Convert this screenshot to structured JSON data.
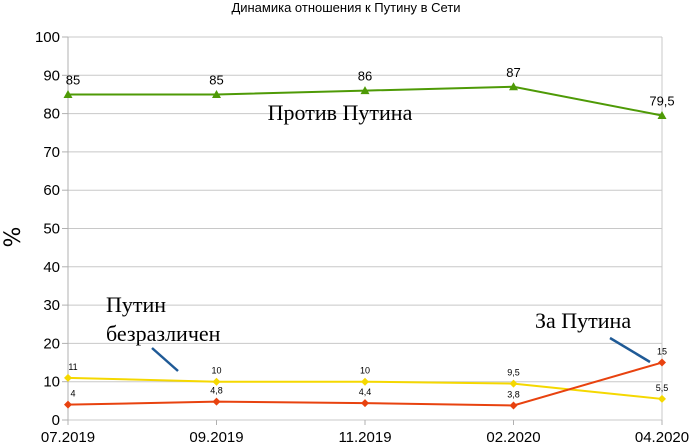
{
  "chart_data": {
    "type": "line",
    "title": "Динамика отношения к Путину в Сети",
    "xlabel": "",
    "ylabel": "%",
    "categories": [
      "07.2019",
      "09.2019",
      "11.2019",
      "02.2020",
      "04.2020"
    ],
    "ylim": [
      0,
      100
    ],
    "yticks": [
      "0",
      "10",
      "20",
      "30",
      "40",
      "50",
      "60",
      "70",
      "80",
      "90",
      "100"
    ],
    "grid": "horizontal",
    "series": [
      {
        "name": "Против Путина",
        "color": "#4E9A06",
        "marker": "triangle",
        "values": [
          85,
          85,
          86,
          87,
          79.5
        ],
        "labels": [
          "85",
          "85",
          "86",
          "87",
          "79,5"
        ]
      },
      {
        "name": "Путин безразличен",
        "color": "#F5D800",
        "marker": "diamond",
        "values": [
          11,
          10,
          10,
          9.5,
          5.5
        ],
        "labels": [
          "11",
          "10",
          "10",
          "9,5",
          "5,5"
        ]
      },
      {
        "name": "За Путина",
        "color": "#E8420F",
        "marker": "diamond",
        "values": [
          4,
          4.8,
          4.4,
          3.8,
          15
        ],
        "labels": [
          "4",
          "4,8",
          "4,4",
          "3,8",
          "15"
        ]
      }
    ],
    "annotations": {
      "against": "Против Путина",
      "indifferent_line1": "Путин",
      "indifferent_line2": "безразличен",
      "for": "За Путина"
    },
    "arrow_color": "#1F5A96"
  }
}
